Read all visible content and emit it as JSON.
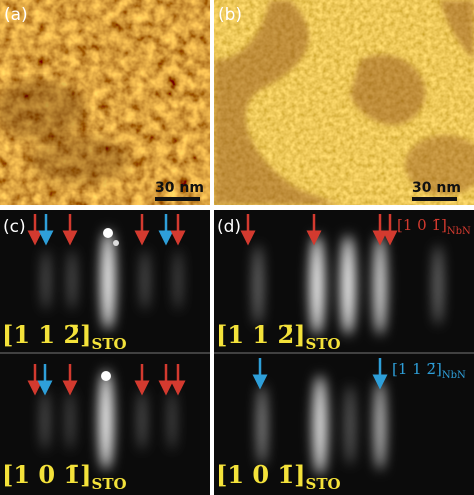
{
  "panels": [
    {
      "label": "(a)",
      "scale_bar": "30 nm"
    },
    {
      "label": "(b)",
      "scale_bar": "30 nm"
    },
    {
      "label": "(c)",
      "rows": [
        {
          "direction": "[1 1 2̄]",
          "subscript": "STO"
        },
        {
          "direction": "[1 0 1̄]",
          "subscript": "STO"
        }
      ]
    },
    {
      "label": "(d)",
      "rows": [
        {
          "direction": "[1 1 2̄]",
          "subscript": "STO",
          "annotation": "[1 0 1̄]",
          "annotation_subscript": "NbN"
        },
        {
          "direction": "[1 0 1̄]",
          "subscript": "STO",
          "annotation": "[1 1 2̄]",
          "annotation_subscript": "NbN"
        }
      ]
    }
  ]
}
